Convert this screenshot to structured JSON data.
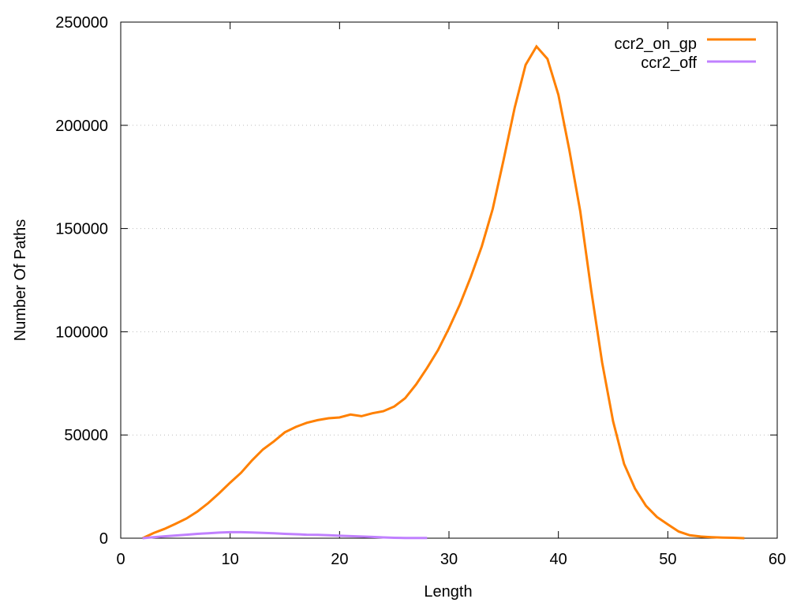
{
  "chart_data": {
    "type": "line",
    "title": "",
    "xlabel": "Length",
    "ylabel": "Number Of Paths",
    "xlim": [
      0,
      60
    ],
    "ylim": [
      0,
      250000
    ],
    "xticks": [
      0,
      10,
      20,
      30,
      40,
      50,
      60
    ],
    "yticks": [
      0,
      50000,
      100000,
      150000,
      200000,
      250000
    ],
    "grid": "horizontal dotted",
    "legend_position": "top-right",
    "series": [
      {
        "name": "ccr2_on_gp",
        "color": "#ff8000",
        "x": [
          2,
          3,
          4,
          5,
          6,
          7,
          8,
          9,
          10,
          11,
          12,
          13,
          14,
          15,
          16,
          17,
          18,
          19,
          20,
          21,
          22,
          23,
          24,
          25,
          26,
          27,
          28,
          29,
          30,
          31,
          32,
          33,
          34,
          35,
          36,
          37,
          38,
          39,
          40,
          41,
          42,
          43,
          44,
          45,
          46,
          47,
          48,
          49,
          50,
          51,
          52,
          53,
          54,
          55,
          56,
          57
        ],
        "y": [
          0,
          2500,
          4500,
          6900,
          9500,
          12900,
          17000,
          21800,
          26900,
          31700,
          37700,
          43000,
          46900,
          51300,
          53900,
          55900,
          57200,
          58100,
          58500,
          59900,
          59100,
          60500,
          61500,
          63800,
          67800,
          74500,
          82500,
          91100,
          101700,
          113300,
          126600,
          141400,
          159600,
          183400,
          208400,
          229300,
          238200,
          232200,
          214700,
          188100,
          158300,
          120000,
          85100,
          56600,
          36000,
          24100,
          15700,
          10300,
          6700,
          3200,
          1400,
          800,
          500,
          300,
          200,
          0
        ]
      },
      {
        "name": "ccr2_off",
        "color": "#c080ff",
        "x": [
          2,
          3,
          4,
          5,
          6,
          7,
          8,
          9,
          10,
          11,
          12,
          13,
          14,
          15,
          16,
          17,
          18,
          19,
          20,
          21,
          22,
          23,
          24,
          25,
          26,
          27,
          28
        ],
        "y": [
          0,
          500,
          900,
          1300,
          1700,
          2100,
          2400,
          2700,
          2900,
          2900,
          2800,
          2600,
          2400,
          2100,
          1900,
          1700,
          1600,
          1400,
          1200,
          1000,
          800,
          600,
          400,
          200,
          100,
          100,
          100
        ]
      }
    ]
  }
}
